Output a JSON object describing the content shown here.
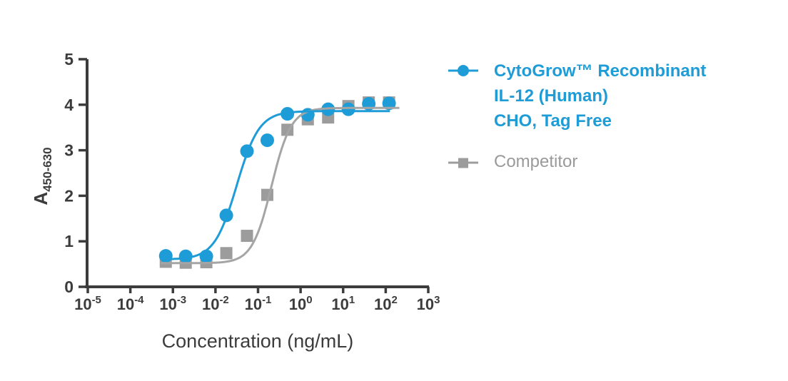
{
  "background": "#FFFFFF",
  "chart_data": {
    "type": "scatter",
    "subtype": "sigmoidal-dose-response-4PL",
    "title": "",
    "xlabel": "Concentration (ng/mL)",
    "ylabel": "A450-630",
    "ylabel_main": "A",
    "ylabel_sub": "450-630",
    "x_scale": "log10",
    "xlim_log": [
      -5,
      3
    ],
    "ylim": [
      0,
      5
    ],
    "grid": false,
    "legend_position": "right",
    "axis_color": "#3C3C3C",
    "y_ticks": [
      0,
      1,
      2,
      3,
      4,
      5
    ],
    "x_ticks": [
      {
        "base": "10",
        "exp": "-5"
      },
      {
        "base": "10",
        "exp": "-4"
      },
      {
        "base": "10",
        "exp": "-3"
      },
      {
        "base": "10",
        "exp": "-2"
      },
      {
        "base": "10",
        "exp": "-1"
      },
      {
        "base": "10",
        "exp": "0"
      },
      {
        "base": "10",
        "exp": "1"
      },
      {
        "base": "10",
        "exp": "2"
      },
      {
        "base": "10",
        "exp": "3"
      }
    ],
    "series": [
      {
        "name": "CytoGrow™ Recombinant IL-12 (Human) CHO, Tag Free",
        "label_lines": [
          "CytoGrow™ Recombinant",
          "IL-12 (Human)",
          "CHO, Tag Free"
        ],
        "color": "#1E9CD7",
        "curve_color": "#1E9CD7",
        "marker": "circle",
        "x": [
          0.00068,
          0.002,
          0.0061,
          0.018,
          0.055,
          0.165,
          0.49,
          1.48,
          4.44,
          13.3,
          40,
          120
        ],
        "y": [
          0.68,
          0.67,
          0.67,
          1.57,
          2.98,
          3.22,
          3.8,
          3.78,
          3.9,
          3.9,
          4.02,
          4.03
        ],
        "fit": {
          "bottom": 0.6,
          "top": 3.86,
          "logEC50": -1.5,
          "hill": 1.65,
          "log_range": [
            -3.28,
            2.1
          ]
        }
      },
      {
        "name": "Competitor",
        "label_lines": [
          "Competitor"
        ],
        "color": "#9C9C9C",
        "curve_color": "#A5A5A5",
        "marker": "square",
        "x": [
          0.00068,
          0.002,
          0.0061,
          0.018,
          0.055,
          0.165,
          0.49,
          1.48,
          4.44,
          13.3,
          40,
          120
        ],
        "y": [
          0.55,
          0.53,
          0.54,
          0.74,
          1.12,
          2.02,
          3.45,
          3.68,
          3.72,
          3.97,
          4.05,
          4.05
        ],
        "fit": {
          "bottom": 0.52,
          "top": 3.93,
          "logEC50": -0.68,
          "hill": 1.9,
          "log_range": [
            -3.28,
            2.32
          ]
        }
      }
    ]
  }
}
